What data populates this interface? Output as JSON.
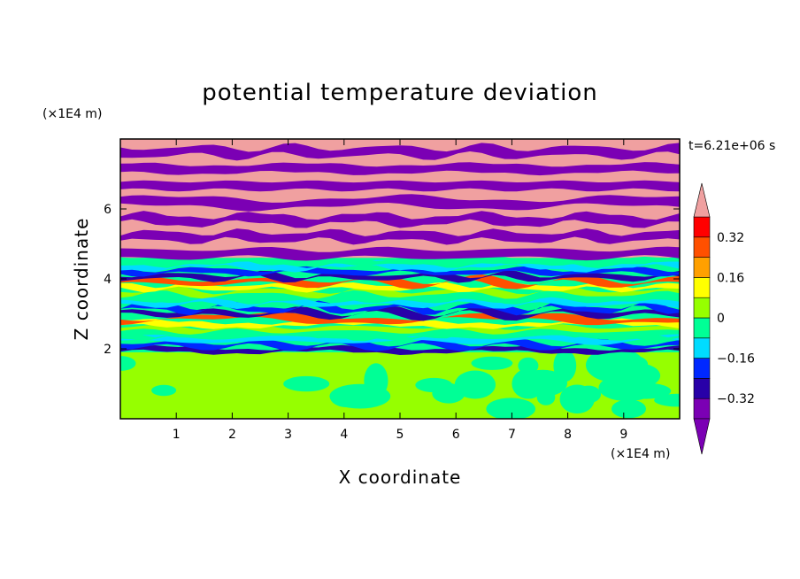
{
  "chart_data": {
    "type": "heatmap",
    "title": "potential temperature deviation",
    "xlabel": "X coordinate",
    "ylabel": "Z coordinate",
    "x_unit_label": "(×1E4 m)",
    "y_unit_label": "(×1E4 m)",
    "time_label": "t=6.21e+06 s",
    "xlim": [
      0,
      10
    ],
    "ylim": [
      0,
      8
    ],
    "x_ticks": [
      "1",
      "2",
      "3",
      "4",
      "5",
      "6",
      "7",
      "8",
      "9"
    ],
    "y_ticks": [
      "2",
      "4",
      "6"
    ],
    "x_tick_values": [
      1,
      2,
      3,
      4,
      5,
      6,
      7,
      8,
      9
    ],
    "y_tick_values": [
      2,
      4,
      6
    ],
    "colorbar": {
      "levels": [
        -0.4,
        -0.32,
        -0.24,
        -0.16,
        -0.08,
        0,
        0.08,
        0.16,
        0.24,
        0.32,
        0.4
      ],
      "labels": [
        "0.32",
        "0.16",
        "0",
        "−0.16",
        "−0.32"
      ],
      "label_values": [
        0.32,
        0.16,
        0,
        -0.16,
        -0.32
      ],
      "colors": [
        "#7b00b4",
        "#2800a8",
        "#0028ff",
        "#00dcff",
        "#00ff96",
        "#96ff00",
        "#ffff00",
        "#ffa000",
        "#ff5000",
        "#ff0000",
        "#f0a0a0"
      ],
      "extend": "both"
    },
    "layers": [
      {
        "z_range": [
          0,
          1.9
        ],
        "pattern": "convective cells",
        "colors": [
          "#96ff00",
          "#00ff96"
        ]
      },
      {
        "z_range": [
          1.9,
          4.6
        ],
        "pattern": "multicolor wave bands",
        "colors": [
          "#2800a8",
          "#0028ff",
          "#00dcff",
          "#00ff96",
          "#96ff00",
          "#ffff00",
          "#ff5000"
        ]
      },
      {
        "z_range": [
          4.6,
          8
        ],
        "pattern": "alternating bands",
        "colors": [
          "#7b00b4",
          "#f0a0a0"
        ]
      }
    ]
  }
}
